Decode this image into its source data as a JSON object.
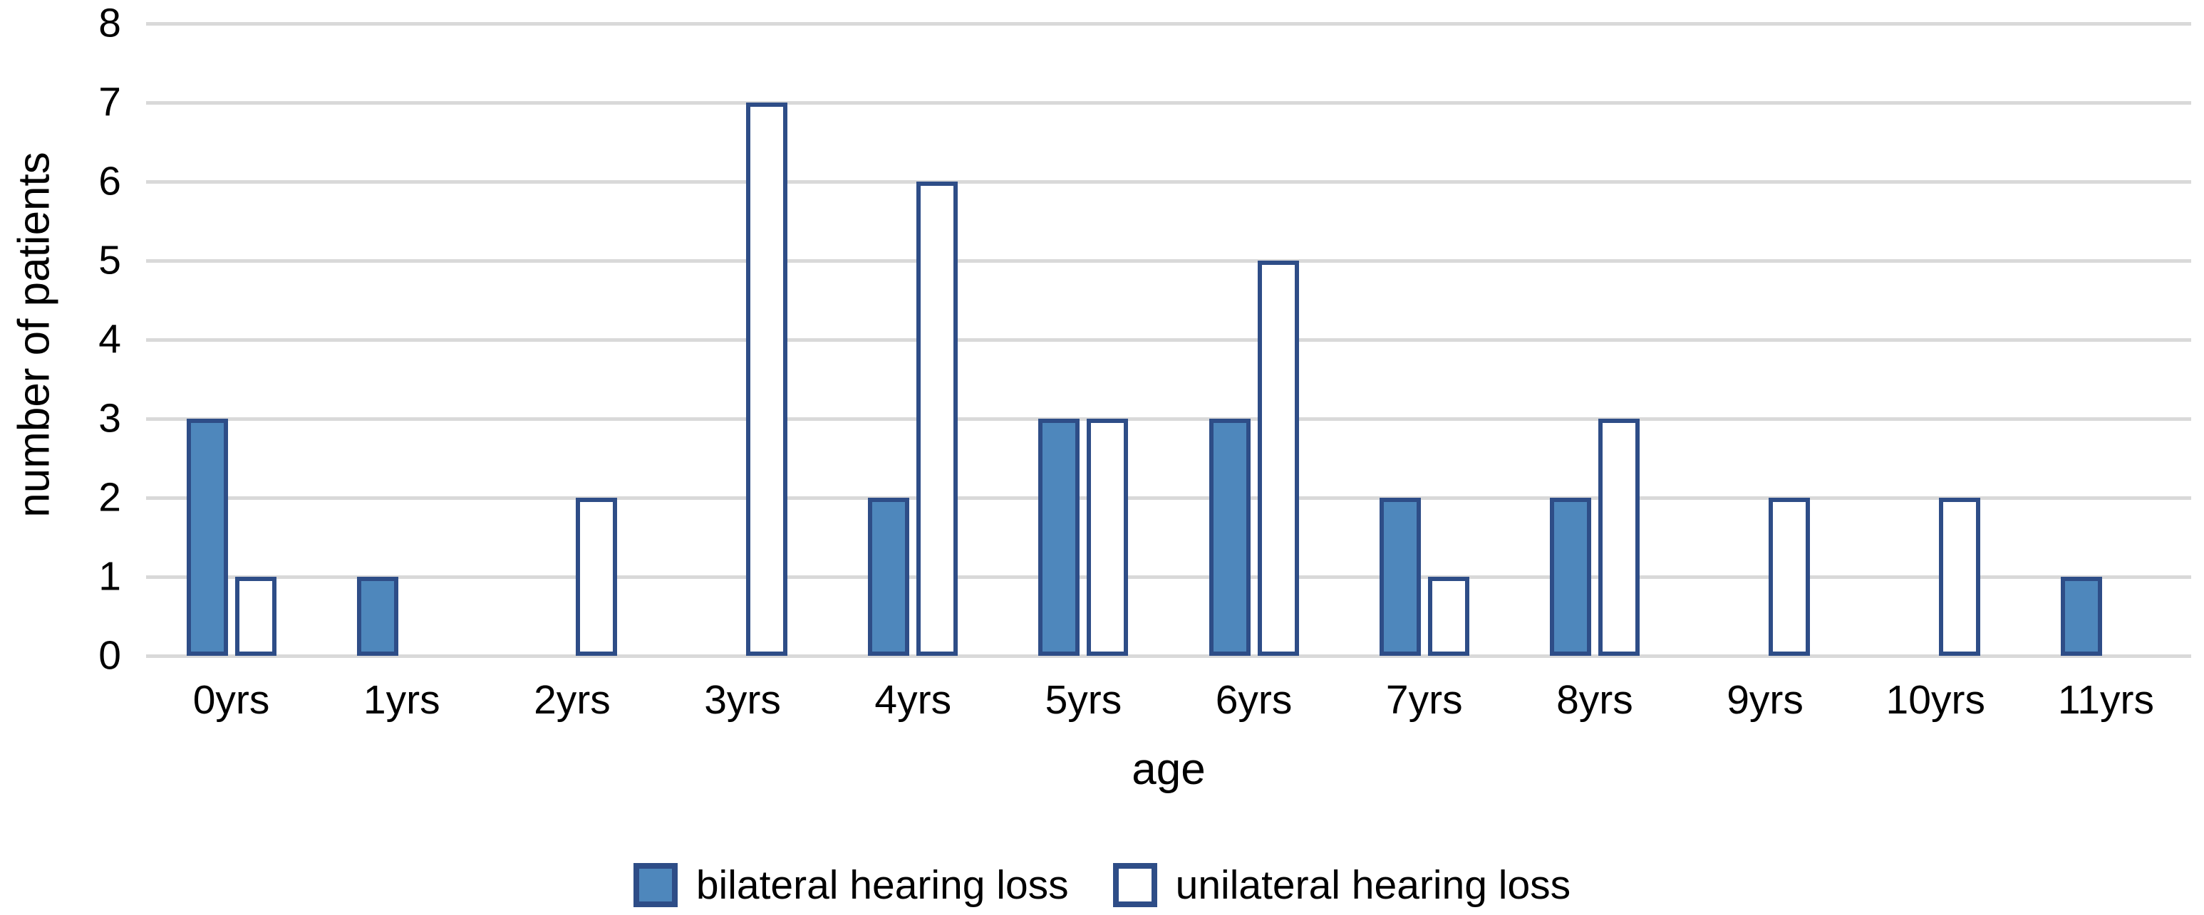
{
  "colors": {
    "bar_fill": "#4E87BC",
    "bar_border": "#2E4D87",
    "gridline": "#D9D9D9",
    "text": "#000000",
    "background": "#FFFFFF"
  },
  "chart_data": {
    "type": "bar",
    "title": "",
    "xlabel": "age",
    "ylabel": "number of patients",
    "categories": [
      "0yrs",
      "1yrs",
      "2yrs",
      "3yrs",
      "4yrs",
      "5yrs",
      "6yrs",
      "7yrs",
      "8yrs",
      "9yrs",
      "10yrs",
      "11yrs"
    ],
    "series": [
      {
        "name": "bilateral hearing loss",
        "style": "filled",
        "values": [
          3,
          1,
          0,
          0,
          2,
          3,
          3,
          2,
          2,
          0,
          0,
          1
        ]
      },
      {
        "name": "unilateral hearing loss",
        "style": "outlined",
        "values": [
          1,
          0,
          2,
          7,
          6,
          3,
          5,
          1,
          3,
          2,
          2,
          0
        ]
      }
    ],
    "ylim": [
      0,
      8
    ],
    "yticks": [
      0,
      1,
      2,
      3,
      4,
      5,
      6,
      7,
      8
    ],
    "grid": "horizontal",
    "legend_position": "bottom"
  }
}
